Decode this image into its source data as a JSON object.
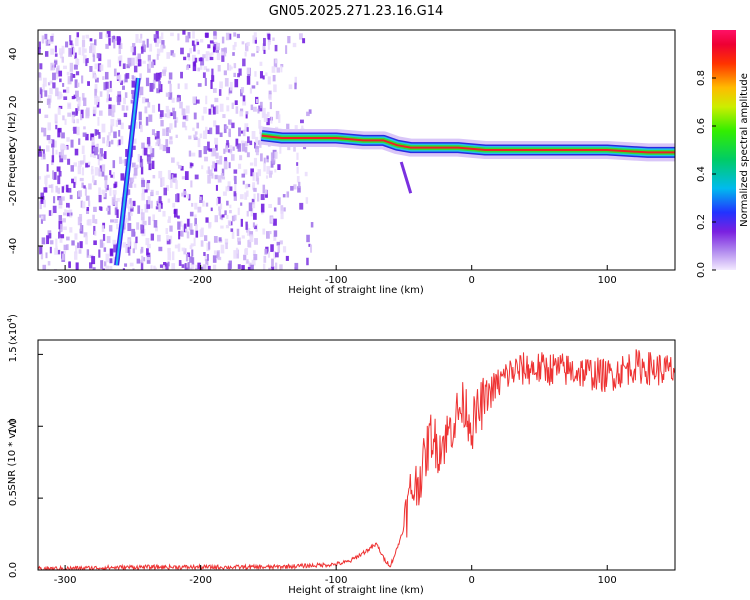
{
  "chart_data": [
    {
      "type": "heatmap",
      "title": "GN05.2025.271.23.16.G14",
      "xlabel": "Height of straight line (km)",
      "ylabel": "Frequency (Hz)",
      "xlim": [
        -320,
        150
      ],
      "ylim": [
        -50,
        50
      ],
      "xticks": [
        -300,
        -200,
        -100,
        0,
        100
      ],
      "yticks": [
        -40,
        -20,
        0,
        20,
        40
      ],
      "colorbar": {
        "label": "Normalized spectral amplitude",
        "range": [
          0.0,
          1.0
        ],
        "ticks": [
          0.0,
          0.2,
          0.4,
          0.6,
          0.8
        ]
      },
      "main_ridge": {
        "x": [
          -155,
          -140,
          -120,
          -100,
          -80,
          -65,
          -55,
          -45,
          -30,
          -10,
          10,
          40,
          70,
          100,
          130,
          150
        ],
        "y": [
          6,
          5,
          5,
          5,
          4,
          4,
          2,
          1,
          1,
          1,
          0,
          0,
          0,
          0,
          -1,
          -1
        ]
      },
      "steep_track": {
        "x": [
          -262,
          -258,
          -254,
          -250,
          -246
        ],
        "y": [
          -48,
          -30,
          -10,
          10,
          30
        ]
      }
    },
    {
      "type": "line",
      "xlabel": "Height of straight line (km)",
      "ylabel": "SNR (10 * v/v)",
      "y_multiplier": "(x10",
      "y_multiplier_exp": "4",
      "xlim": [
        -320,
        150
      ],
      "ylim": [
        0,
        1.6
      ],
      "xticks": [
        -300,
        -200,
        -100,
        0,
        100
      ],
      "yticks": [
        0.0,
        0.5,
        1.0,
        1.5
      ],
      "series": [
        {
          "name": "SNR",
          "color": "#ee3333",
          "x": [
            -320,
            -300,
            -250,
            -200,
            -150,
            -120,
            -100,
            -90,
            -80,
            -70,
            -65,
            -60,
            -55,
            -50,
            -45,
            -40,
            -35,
            -30,
            -25,
            -20,
            -15,
            -10,
            -5,
            0,
            5,
            10,
            15,
            20,
            25,
            30,
            40,
            60,
            80,
            100,
            120,
            150
          ],
          "y": [
            0.01,
            0.01,
            0.02,
            0.02,
            0.02,
            0.03,
            0.04,
            0.06,
            0.12,
            0.18,
            0.08,
            0.03,
            0.15,
            0.3,
            0.55,
            0.6,
            0.75,
            0.95,
            0.85,
            0.9,
            1.0,
            1.1,
            1.15,
            1.0,
            1.1,
            1.2,
            1.25,
            1.3,
            1.35,
            1.38,
            1.4,
            1.4,
            1.38,
            1.35,
            1.42,
            1.38
          ]
        }
      ]
    }
  ]
}
